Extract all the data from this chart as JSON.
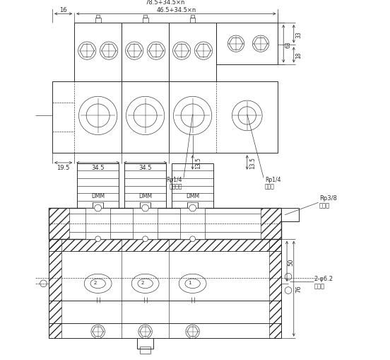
{
  "bg_color": "#ffffff",
  "line_color": "#2a2a2a",
  "dim_color": "#2a2a2a",
  "annotations": {
    "dim_78": "78.5+34.5×n",
    "dim_46": "46.5+34.5×n",
    "dim_16": "16",
    "dim_19": "19.5",
    "dim_34a": "34.5",
    "dim_34b": "34.5",
    "dim_135a": "13.5",
    "dim_135b": "13.5",
    "dim_63": "63",
    "dim_33": "33",
    "dim_18": "18",
    "rp14_1": "Rp1/4",
    "rp14_1_cn": "油气出口",
    "rp14_2": "Rp1/4",
    "rp14_2_cn": "进气口",
    "rp38": "Rp3/8",
    "rp38_cn": "进油口",
    "dmm": "DMM",
    "phi62": "2-φ6.2",
    "anzhuang": "安装孔",
    "dim_76": "76",
    "dim_50": "50"
  }
}
